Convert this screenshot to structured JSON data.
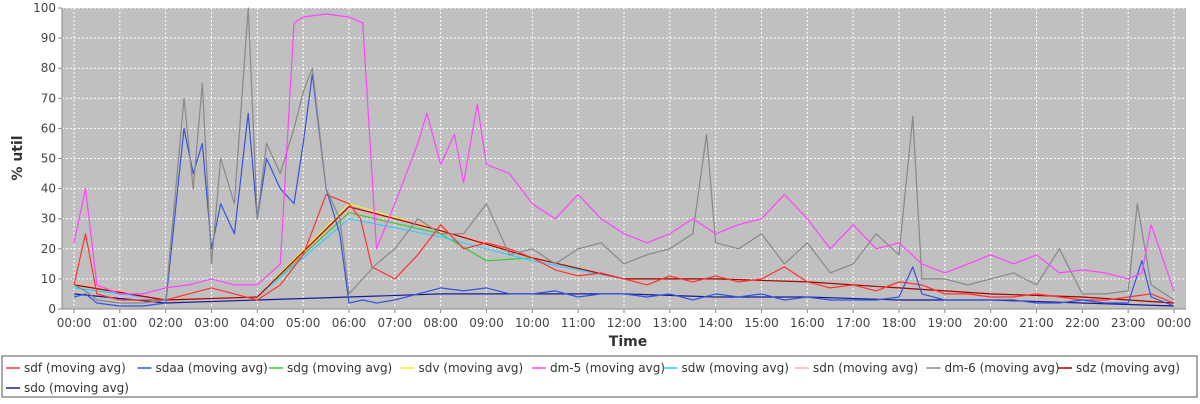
{
  "chart_data": {
    "type": "line",
    "xlabel": "Time",
    "ylabel": "% util",
    "ylim": [
      0,
      100
    ],
    "y_ticks": [
      0,
      10,
      20,
      30,
      40,
      50,
      60,
      70,
      80,
      90,
      100
    ],
    "x_ticks": [
      "00:00",
      "01:00",
      "02:00",
      "03:00",
      "04:00",
      "05:00",
      "06:00",
      "07:00",
      "08:00",
      "09:00",
      "10:00",
      "11:00",
      "12:00",
      "13:00",
      "14:00",
      "15:00",
      "16:00",
      "17:00",
      "18:00",
      "19:00",
      "20:00",
      "21:00",
      "22:00",
      "23:00",
      "00:00"
    ],
    "x_unit": "hours since 00:00",
    "grid": true,
    "background": "#c0c0c0",
    "legend_position": "bottom",
    "series": [
      {
        "name": "sdf (moving avg)",
        "color": "#ff3333",
        "x": [
          0,
          0.25,
          0.5,
          1,
          1.5,
          2,
          2.5,
          3,
          3.5,
          4,
          4.5,
          5,
          5.5,
          6,
          6.25,
          6.5,
          7,
          7.5,
          8,
          8.5,
          9,
          9.5,
          10,
          10.5,
          11,
          11.5,
          12,
          12.5,
          13,
          13.5,
          14,
          14.5,
          15,
          15.5,
          16,
          16.5,
          17,
          17.5,
          18,
          18.5,
          19,
          19.5,
          20,
          20.5,
          21,
          21.5,
          22,
          22.5,
          23,
          23.5,
          24
        ],
        "y": [
          8,
          25,
          5,
          3,
          3,
          3,
          5,
          7,
          5,
          3,
          8,
          18,
          38,
          35,
          30,
          14,
          10,
          18,
          28,
          20,
          22,
          20,
          17,
          13,
          11,
          12,
          10,
          8,
          11,
          9,
          11,
          9,
          10,
          14,
          9,
          7,
          8,
          6,
          9,
          8,
          5,
          5,
          4,
          4,
          5,
          4,
          3,
          3,
          4,
          5,
          2
        ]
      },
      {
        "name": "sdaa (moving avg)",
        "color": "#3355dd",
        "x": [
          0,
          0.25,
          0.5,
          1,
          1.5,
          2,
          2.4,
          2.6,
          2.8,
          3,
          3.2,
          3.5,
          3.8,
          4,
          4.2,
          4.5,
          4.8,
          5,
          5.2,
          5.5,
          5.8,
          6,
          6.3,
          6.6,
          7,
          7.5,
          8,
          8.5,
          9,
          9.5,
          10,
          10.5,
          11,
          11.5,
          12,
          12.5,
          13,
          13.5,
          14,
          14.5,
          15,
          15.5,
          16,
          16.5,
          17,
          17.5,
          18,
          18.3,
          18.5,
          19,
          19.5,
          20,
          20.5,
          21,
          21.5,
          22,
          22.5,
          23,
          23.3,
          23.5,
          24
        ],
        "y": [
          4,
          5,
          2,
          1,
          1,
          2,
          60,
          45,
          55,
          20,
          35,
          25,
          65,
          30,
          50,
          40,
          35,
          55,
          78,
          40,
          25,
          2,
          3,
          2,
          3,
          5,
          7,
          6,
          7,
          5,
          5,
          6,
          4,
          5,
          5,
          4,
          5,
          3,
          5,
          4,
          5,
          3,
          4,
          3,
          3,
          3,
          4,
          14,
          5,
          3,
          3,
          3,
          3,
          2,
          2,
          3,
          2,
          2,
          16,
          4,
          1
        ]
      },
      {
        "name": "sdg (moving avg)",
        "color": "#33cc33",
        "x": [
          0,
          2,
          4,
          6,
          8,
          9,
          10,
          12,
          14,
          16,
          18,
          20,
          22,
          24
        ],
        "y": [
          8,
          3,
          4,
          32,
          25,
          16,
          17,
          10,
          10,
          9,
          7,
          5,
          4,
          2
        ]
      },
      {
        "name": "sdv (moving avg)",
        "color": "#eeee33",
        "x": [
          0,
          2,
          4,
          6,
          8,
          10,
          12,
          14,
          16,
          18,
          20,
          22,
          24
        ],
        "y": [
          8,
          3,
          4,
          35,
          26,
          17,
          10,
          10,
          9,
          7,
          5,
          4,
          2
        ]
      },
      {
        "name": "dm-5 (moving avg)",
        "color": "#ff44ff",
        "x": [
          0,
          0.25,
          0.5,
          1,
          1.5,
          2,
          2.5,
          3,
          3.5,
          4,
          4.5,
          4.8,
          5,
          5.5,
          6,
          6.3,
          6.6,
          7,
          7.5,
          7.7,
          8,
          8.3,
          8.5,
          8.8,
          9,
          9.5,
          10,
          10.5,
          11,
          11.5,
          12,
          12.5,
          13,
          13.5,
          14,
          14.5,
          15,
          15.5,
          16,
          16.5,
          17,
          17.5,
          18,
          18.5,
          19,
          19.5,
          20,
          20.5,
          21,
          21.5,
          22,
          22.5,
          23,
          23.3,
          23.5,
          24
        ],
        "y": [
          22,
          40,
          8,
          5,
          5,
          7,
          8,
          10,
          8,
          8,
          15,
          95,
          97,
          98,
          97,
          95,
          20,
          35,
          55,
          65,
          48,
          58,
          42,
          68,
          48,
          45,
          35,
          30,
          38,
          30,
          25,
          22,
          25,
          30,
          25,
          28,
          30,
          38,
          30,
          20,
          28,
          20,
          22,
          15,
          12,
          15,
          18,
          15,
          18,
          12,
          13,
          12,
          10,
          12,
          28,
          6
        ]
      },
      {
        "name": "sdw (moving avg)",
        "color": "#33ccff",
        "x": [
          0,
          2,
          4,
          6,
          8,
          10,
          12,
          14,
          16,
          18,
          20,
          22,
          24
        ],
        "y": [
          7,
          3,
          4,
          30,
          24,
          16,
          10,
          10,
          9,
          7,
          5,
          4,
          2
        ]
      },
      {
        "name": "sdn (moving avg)",
        "color": "#ffaaaa",
        "x": [
          0,
          2,
          4,
          6,
          8,
          10,
          12,
          14,
          16,
          18,
          20,
          22,
          24
        ],
        "y": [
          9,
          3,
          4,
          33,
          27,
          17,
          10,
          10,
          9,
          7,
          5,
          4,
          2
        ]
      },
      {
        "name": "dm-6 (moving avg)",
        "color": "#888888",
        "x": [
          0,
          0.25,
          0.5,
          1,
          1.5,
          2,
          2.4,
          2.6,
          2.8,
          3,
          3.2,
          3.5,
          3.8,
          4,
          4.2,
          4.5,
          4.8,
          5,
          5.2,
          5.5,
          5.8,
          6,
          6.3,
          6.6,
          7,
          7.5,
          8,
          8.5,
          9,
          9.5,
          10,
          10.5,
          11,
          11.5,
          12,
          12.5,
          13,
          13.5,
          13.8,
          14,
          14.5,
          15,
          15.5,
          16,
          16.5,
          17,
          17.5,
          18,
          18.3,
          18.5,
          19,
          19.5,
          20,
          20.5,
          21,
          21.5,
          22,
          22.5,
          23,
          23.2,
          23.5,
          24
        ],
        "y": [
          8,
          6,
          3,
          2,
          2,
          3,
          70,
          40,
          75,
          15,
          50,
          35,
          100,
          30,
          55,
          45,
          60,
          72,
          80,
          40,
          30,
          5,
          10,
          15,
          20,
          30,
          25,
          25,
          35,
          18,
          20,
          15,
          20,
          22,
          15,
          18,
          20,
          25,
          58,
          22,
          20,
          25,
          15,
          22,
          12,
          15,
          25,
          18,
          64,
          10,
          10,
          8,
          10,
          12,
          8,
          20,
          5,
          5,
          6,
          35,
          8,
          3
        ]
      },
      {
        "name": "sdz (moving avg)",
        "color": "#aa0000",
        "x": [
          0,
          2,
          4,
          6,
          8,
          10,
          12,
          14,
          16,
          18,
          20,
          22,
          24
        ],
        "y": [
          8,
          3,
          4,
          34,
          26,
          17,
          10,
          10,
          9,
          7,
          5,
          4,
          2
        ]
      },
      {
        "name": "sdo (moving avg)",
        "color": "#1a1a99",
        "x": [
          0,
          2,
          4,
          6,
          8,
          10,
          12,
          14,
          16,
          18,
          20,
          22,
          24
        ],
        "y": [
          5,
          2,
          3,
          4,
          5,
          5,
          5,
          4,
          4,
          3,
          3,
          2,
          1
        ]
      }
    ]
  }
}
